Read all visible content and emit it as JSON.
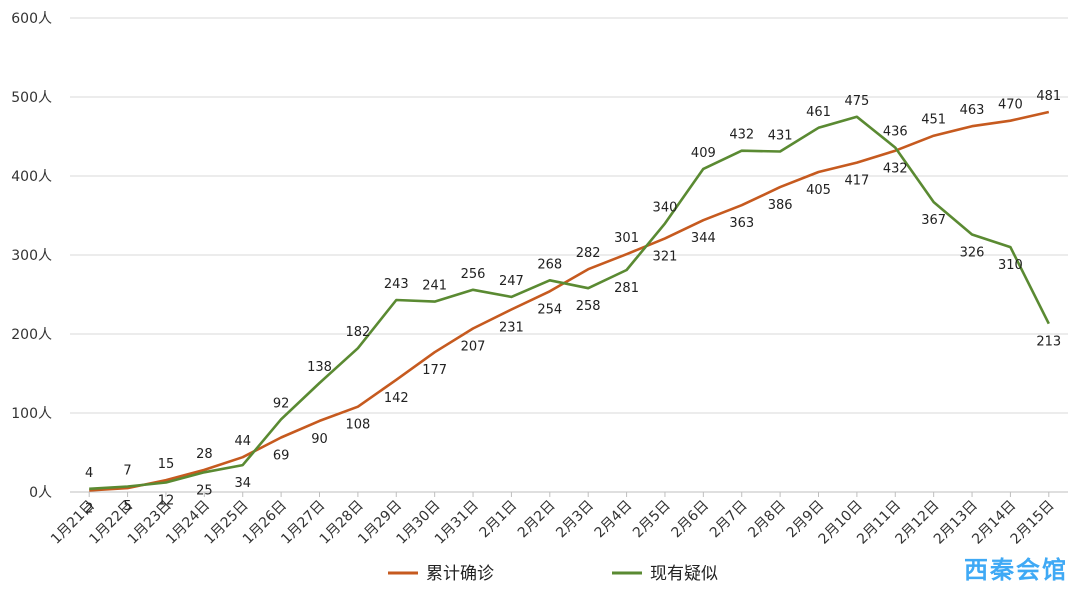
{
  "chart_data": {
    "type": "line",
    "categories": [
      "1月21日",
      "1月22日",
      "1月23日",
      "1月24日",
      "1月25日",
      "1月26日",
      "1月27日",
      "1月28日",
      "1月29日",
      "1月30日",
      "1月31日",
      "2月1日",
      "2月2日",
      "2月3日",
      "2月4日",
      "2月5日",
      "2月6日",
      "2月7日",
      "2月8日",
      "2月9日",
      "2月10日",
      "2月11日",
      "2月12日",
      "2月13日",
      "2月14日",
      "2月15日"
    ],
    "series": [
      {
        "name": "累计确诊",
        "color": "#c65a1f",
        "values": [
          2,
          5,
          15,
          28,
          44,
          69,
          90,
          108,
          142,
          177,
          207,
          231,
          254,
          282,
          301,
          321,
          344,
          363,
          386,
          405,
          417,
          432,
          451,
          463,
          470,
          481
        ]
      },
      {
        "name": "现有疑似",
        "color": "#5a8a32",
        "values": [
          4,
          7,
          12,
          25,
          34,
          92,
          138,
          182,
          243,
          241,
          256,
          247,
          268,
          258,
          281,
          340,
          409,
          432,
          431,
          461,
          475,
          436,
          367,
          326,
          310,
          213
        ]
      }
    ],
    "ylim": [
      0,
      600
    ],
    "yticks": [
      0,
      100,
      200,
      300,
      400,
      500,
      600
    ],
    "y_unit": "人",
    "grid": true,
    "legend_position": "bottom"
  },
  "watermark": "西秦会馆"
}
